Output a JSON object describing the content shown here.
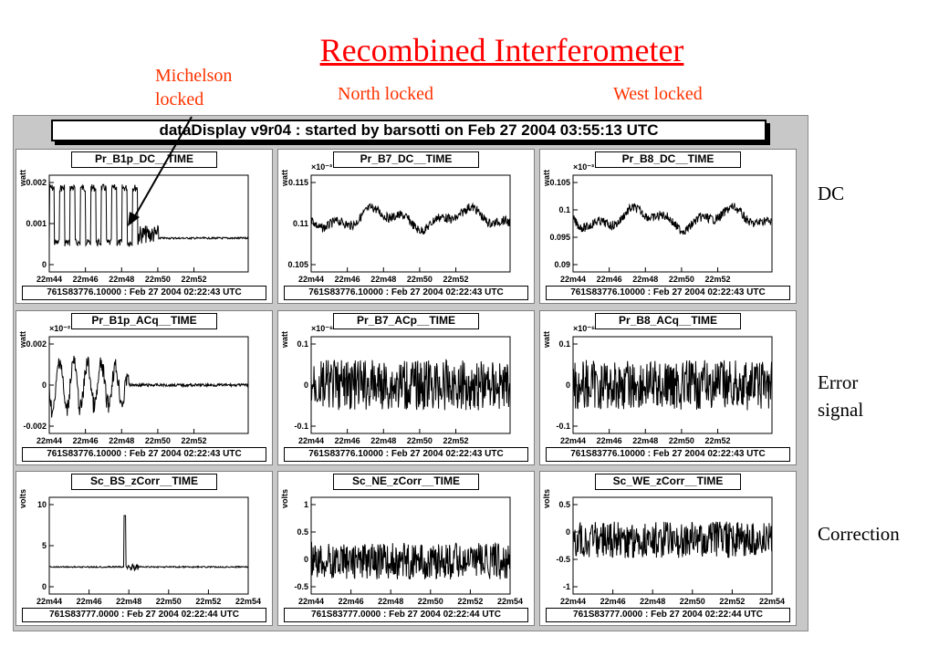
{
  "slide": {
    "title": "Recombined Interferometer",
    "annotations": {
      "michelson_line1": "Michelson",
      "michelson_line2": "locked",
      "north": "North locked",
      "west": "West locked"
    },
    "row_labels": {
      "dc": "DC",
      "error_line1": "Error",
      "error_line2": "signal",
      "correction": "Correction"
    },
    "colors": {
      "annotation": "#ff3300",
      "title": "#ff0000"
    }
  },
  "display": {
    "header": "dataDisplay v9r04 : started by barsotti on  Feb 27 2004 03:55:13 UTC"
  },
  "pads": [
    {
      "title": "Pr_B1p_DC__TIME",
      "unit": "watt",
      "exponent": "",
      "yticks": [
        "0.002",
        "0.001",
        "0"
      ],
      "xticks": [
        "22m44",
        "22m46",
        "22m48",
        "22m50",
        "22m52"
      ],
      "stamp": "761S83776.10000 : Feb 27 2004 02:22:43 UTC",
      "pattern": "michelson-dc"
    },
    {
      "title": "Pr_B7_DC__TIME",
      "unit": "watt",
      "exponent": "×10⁻³",
      "yticks": [
        "0.115",
        "0.11",
        "0.105"
      ],
      "xticks": [
        "22m44",
        "22m46",
        "22m48",
        "22m50",
        "22m52"
      ],
      "stamp": "761S83776.10000 : Feb 27 2004 02:22:43 UTC",
      "pattern": "wander"
    },
    {
      "title": "Pr_B8_DC__TIME",
      "unit": "watt",
      "exponent": "×10⁻³",
      "yticks": [
        "0.105",
        "0.1",
        "0.095",
        "0.09"
      ],
      "xticks": [
        "22m44",
        "22m46",
        "22m48",
        "22m50",
        "22m52"
      ],
      "stamp": "761S83776.10000 : Feb 27 2004 02:22:43 UTC",
      "pattern": "wander"
    },
    {
      "title": "Pr_B1p_ACq__TIME",
      "unit": "watt",
      "exponent": "×10⁻²",
      "yticks": [
        "0.002",
        "0",
        "-0.002"
      ],
      "xticks": [
        "22m44",
        "22m46",
        "22m48",
        "22m50",
        "22m52"
      ],
      "stamp": "761S83776.10000 : Feb 27 2004 02:22:43 UTC",
      "pattern": "michelson-ac"
    },
    {
      "title": "Pr_B7_ACp__TIME",
      "unit": "watt",
      "exponent": "×10⁻⁶",
      "yticks": [
        "0.1",
        "0",
        "-0.1"
      ],
      "xticks": [
        "22m44",
        "22m46",
        "22m48",
        "22m50",
        "22m52"
      ],
      "stamp": "761S83776.10000 : Feb 27 2004 02:22:43 UTC",
      "pattern": "noise"
    },
    {
      "title": "Pr_B8_ACq__TIME",
      "unit": "watt",
      "exponent": "×10⁻⁶",
      "yticks": [
        "0.1",
        "0",
        "-0.1"
      ],
      "xticks": [
        "22m44",
        "22m46",
        "22m48",
        "22m50",
        "22m52"
      ],
      "stamp": "761S83776.10000 : Feb 27 2004 02:22:43 UTC",
      "pattern": "noise"
    },
    {
      "title": "Sc_BS_zCorr__TIME",
      "unit": "volts",
      "exponent": "",
      "yticks": [
        "10",
        "5",
        "0"
      ],
      "xticks": [
        "22m44",
        "22m46",
        "22m48",
        "22m50",
        "22m52",
        "22m54"
      ],
      "stamp": "761S83777.0000 : Feb 27 2004 02:22:44 UTC",
      "pattern": "spike"
    },
    {
      "title": "Sc_NE_zCorr__TIME",
      "unit": "volts",
      "exponent": "",
      "yticks": [
        "1",
        "0.5",
        "0",
        "-0.5"
      ],
      "xticks": [
        "22m44",
        "22m46",
        "22m48",
        "22m50",
        "22m52",
        "22m54"
      ],
      "stamp": "761S83777.0000 : Feb 27 2004 02:22:44 UTC",
      "pattern": "band-low"
    },
    {
      "title": "Sc_WE_zCorr__TIME",
      "unit": "volts",
      "exponent": "",
      "yticks": [
        "0.5",
        "0",
        "-0.5",
        "-1"
      ],
      "xticks": [
        "22m44",
        "22m46",
        "22m48",
        "22m50",
        "22m52",
        "22m54"
      ],
      "stamp": "761S83777.0000 : Feb 27 2004 02:22:44 UTC",
      "pattern": "band-high"
    }
  ]
}
